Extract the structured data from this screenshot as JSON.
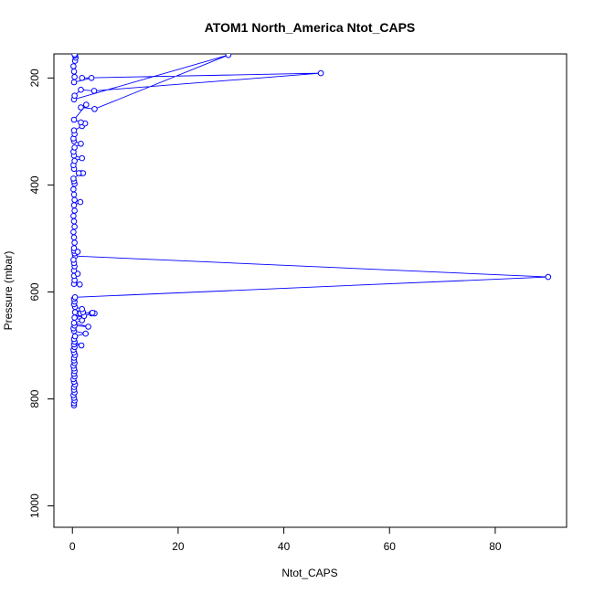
{
  "chart_data": {
    "type": "line",
    "title": "ATOM1 North_America Ntot_CAPS",
    "xlabel": "Ntot_CAPS",
    "ylabel": "Pressure (mbar)",
    "xlim": [
      -3.5,
      93.5
    ],
    "ylim": [
      1040,
      155
    ],
    "y_reversed": true,
    "x_ticks": [
      0,
      20,
      40,
      60,
      80
    ],
    "y_ticks": [
      200,
      400,
      600,
      800,
      1000
    ],
    "grid": false,
    "legend": "none",
    "series": [
      {
        "color": "#0000ff",
        "marker": "open-circle",
        "points": [
          [
            0.3,
            812
          ],
          [
            0.3,
            808
          ],
          [
            0.4,
            803
          ],
          [
            0.3,
            798
          ],
          [
            0.2,
            793
          ],
          [
            0.4,
            788
          ],
          [
            0.3,
            783
          ],
          [
            0.3,
            778
          ],
          [
            0.5,
            773
          ],
          [
            0.3,
            768
          ],
          [
            0.2,
            763
          ],
          [
            0.4,
            758
          ],
          [
            0.3,
            753
          ],
          [
            0.4,
            748
          ],
          [
            0.3,
            743
          ],
          [
            0.2,
            738
          ],
          [
            0.4,
            733
          ],
          [
            0.3,
            728
          ],
          [
            0.3,
            723
          ],
          [
            0.5,
            718
          ],
          [
            0.3,
            713
          ],
          [
            0.2,
            708
          ],
          [
            0.4,
            703
          ],
          [
            0.3,
            698
          ],
          [
            1.7,
            700
          ],
          [
            0.4,
            693
          ],
          [
            0.3,
            688
          ],
          [
            0.5,
            683
          ],
          [
            2.5,
            678
          ],
          [
            0.3,
            673
          ],
          [
            0.2,
            668
          ],
          [
            0.4,
            663
          ],
          [
            3.0,
            665
          ],
          [
            0.3,
            658
          ],
          [
            1.8,
            653
          ],
          [
            0.4,
            648
          ],
          [
            2.2,
            645
          ],
          [
            3.6,
            640
          ],
          [
            4.2,
            640
          ],
          [
            3.8,
            639
          ],
          [
            1.0,
            640
          ],
          [
            0.5,
            638
          ],
          [
            1.5,
            640
          ],
          [
            2.0,
            638
          ],
          [
            1.8,
            632
          ],
          [
            0.5,
            628
          ],
          [
            0.3,
            623
          ],
          [
            0.4,
            618
          ],
          [
            0.3,
            613
          ],
          [
            0.5,
            610
          ],
          [
            90.0,
            572
          ],
          [
            0.5,
            533
          ],
          [
            0.3,
            585
          ],
          [
            1.4,
            586
          ],
          [
            0.4,
            578
          ],
          [
            0.3,
            570
          ],
          [
            1.0,
            566
          ],
          [
            0.3,
            560
          ],
          [
            0.4,
            552
          ],
          [
            0.3,
            546
          ],
          [
            0.2,
            540
          ],
          [
            0.4,
            528
          ],
          [
            0.3,
            523
          ],
          [
            1.0,
            525
          ],
          [
            0.3,
            518
          ],
          [
            0.4,
            508
          ],
          [
            0.3,
            498
          ],
          [
            0.2,
            488
          ],
          [
            0.4,
            478
          ],
          [
            0.3,
            468
          ],
          [
            0.2,
            458
          ],
          [
            0.4,
            448
          ],
          [
            0.3,
            438
          ],
          [
            1.5,
            432
          ],
          [
            0.4,
            428
          ],
          [
            0.3,
            418
          ],
          [
            0.2,
            408
          ],
          [
            0.4,
            398
          ],
          [
            0.3,
            393
          ],
          [
            0.2,
            388
          ],
          [
            1.6,
            378
          ],
          [
            2.0,
            378
          ],
          [
            1.2,
            378
          ],
          [
            0.3,
            370
          ],
          [
            0.2,
            363
          ],
          [
            0.4,
            355
          ],
          [
            1.8,
            350
          ],
          [
            0.3,
            345
          ],
          [
            0.2,
            338
          ],
          [
            0.4,
            330
          ],
          [
            1.6,
            323
          ],
          [
            0.3,
            318
          ],
          [
            0.2,
            313
          ],
          [
            0.4,
            305
          ],
          [
            0.3,
            298
          ],
          [
            1.8,
            290
          ],
          [
            2.4,
            285
          ],
          [
            1.6,
            283
          ],
          [
            0.3,
            278
          ],
          [
            2.6,
            250
          ],
          [
            1.6,
            255
          ],
          [
            4.2,
            258
          ],
          [
            29.5,
            157
          ],
          [
            0.3,
            240
          ],
          [
            0.4,
            233
          ],
          [
            1.6,
            222
          ],
          [
            4.1,
            224
          ],
          [
            47.0,
            191
          ],
          [
            1.8,
            200
          ],
          [
            3.6,
            200
          ],
          [
            0.3,
            208
          ],
          [
            0.4,
            198
          ],
          [
            0.3,
            188
          ],
          [
            0.2,
            178
          ],
          [
            0.5,
            168
          ],
          [
            0.6,
            162
          ],
          [
            0.5,
            158
          ],
          [
            0.4,
            156
          ]
        ]
      }
    ]
  }
}
